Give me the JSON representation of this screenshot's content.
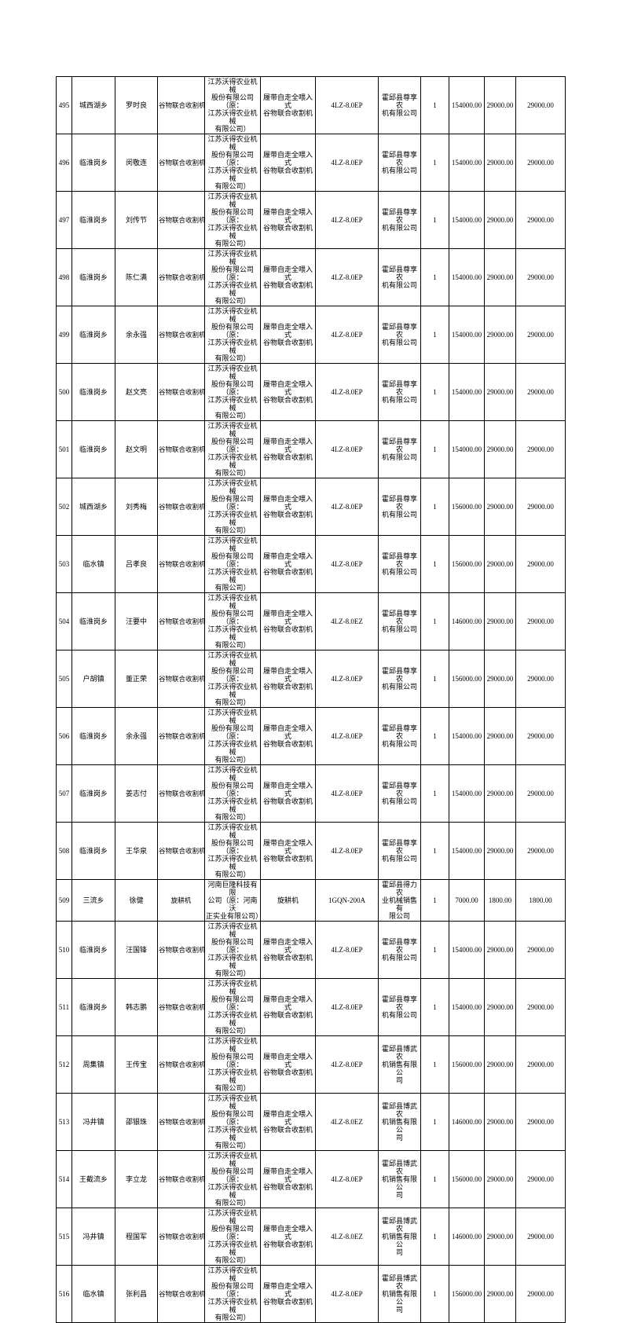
{
  "colors": {
    "text": "#000000",
    "border": "#000000",
    "background": "#ffffff"
  },
  "table": {
    "columns": [
      "seq",
      "township",
      "name",
      "machine_type",
      "manufacturer",
      "product",
      "model",
      "dealer",
      "quantity",
      "price",
      "unit_subsidy",
      "total_subsidy"
    ],
    "rows": [
      {
        "seq": "495",
        "township": "城西湖乡",
        "name": "罗时良",
        "machine_type": "谷物联合收割机",
        "manufacturer": "江苏沃得农业机械\n股份有限公司（原：\n江苏沃得农业机械\n有限公司）",
        "product": "履带自走全喂入式\n谷物联合收割机",
        "model": "4LZ-8.0EP",
        "dealer": "霍邱县尊享农\n机有限公司",
        "quantity": "1",
        "price": "154000.00",
        "unit_subsidy": "29000.00",
        "total_subsidy": "29000.00"
      },
      {
        "seq": "496",
        "township": "临淮岗乡",
        "name": "闵敬连",
        "machine_type": "谷物联合收割机",
        "manufacturer": "江苏沃得农业机械\n股份有限公司（原：\n江苏沃得农业机械\n有限公司）",
        "product": "履带自走全喂入式\n谷物联合收割机",
        "model": "4LZ-8.0EP",
        "dealer": "霍邱县尊享农\n机有限公司",
        "quantity": "1",
        "price": "154000.00",
        "unit_subsidy": "29000.00",
        "total_subsidy": "29000.00"
      },
      {
        "seq": "497",
        "township": "临淮岗乡",
        "name": "刘传节",
        "machine_type": "谷物联合收割机",
        "manufacturer": "江苏沃得农业机械\n股份有限公司（原：\n江苏沃得农业机械\n有限公司）",
        "product": "履带自走全喂入式\n谷物联合收割机",
        "model": "4LZ-8.0EP",
        "dealer": "霍邱县尊享农\n机有限公司",
        "quantity": "1",
        "price": "154000.00",
        "unit_subsidy": "29000.00",
        "total_subsidy": "29000.00"
      },
      {
        "seq": "498",
        "township": "临淮岗乡",
        "name": "陈仁满",
        "machine_type": "谷物联合收割机",
        "manufacturer": "江苏沃得农业机械\n股份有限公司（原：\n江苏沃得农业机械\n有限公司）",
        "product": "履带自走全喂入式\n谷物联合收割机",
        "model": "4LZ-8.0EP",
        "dealer": "霍邱县尊享农\n机有限公司",
        "quantity": "1",
        "price": "154000.00",
        "unit_subsidy": "29000.00",
        "total_subsidy": "29000.00"
      },
      {
        "seq": "499",
        "township": "临淮岗乡",
        "name": "余永强",
        "machine_type": "谷物联合收割机",
        "manufacturer": "江苏沃得农业机械\n股份有限公司（原：\n江苏沃得农业机械\n有限公司）",
        "product": "履带自走全喂入式\n谷物联合收割机",
        "model": "4LZ-8.0EP",
        "dealer": "霍邱县尊享农\n机有限公司",
        "quantity": "1",
        "price": "154000.00",
        "unit_subsidy": "29000.00",
        "total_subsidy": "29000.00"
      },
      {
        "seq": "500",
        "township": "临淮岗乡",
        "name": "赵文亮",
        "machine_type": "谷物联合收割机",
        "manufacturer": "江苏沃得农业机械\n股份有限公司（原：\n江苏沃得农业机械\n有限公司）",
        "product": "履带自走全喂入式\n谷物联合收割机",
        "model": "4LZ-8.0EP",
        "dealer": "霍邱县尊享农\n机有限公司",
        "quantity": "1",
        "price": "154000.00",
        "unit_subsidy": "29000.00",
        "total_subsidy": "29000.00"
      },
      {
        "seq": "501",
        "township": "临淮岗乡",
        "name": "赵文明",
        "machine_type": "谷物联合收割机",
        "manufacturer": "江苏沃得农业机械\n股份有限公司（原：\n江苏沃得农业机械\n有限公司）",
        "product": "履带自走全喂入式\n谷物联合收割机",
        "model": "4LZ-8.0EP",
        "dealer": "霍邱县尊享农\n机有限公司",
        "quantity": "1",
        "price": "154000.00",
        "unit_subsidy": "29000.00",
        "total_subsidy": "29000.00"
      },
      {
        "seq": "502",
        "township": "城西湖乡",
        "name": "刘秀梅",
        "machine_type": "谷物联合收割机",
        "manufacturer": "江苏沃得农业机械\n股份有限公司（原：\n江苏沃得农业机械\n有限公司）",
        "product": "履带自走全喂入式\n谷物联合收割机",
        "model": "4LZ-8.0EP",
        "dealer": "霍邱县尊享农\n机有限公司",
        "quantity": "1",
        "price": "156000.00",
        "unit_subsidy": "29000.00",
        "total_subsidy": "29000.00"
      },
      {
        "seq": "503",
        "township": "临水镇",
        "name": "吕孝良",
        "machine_type": "谷物联合收割机",
        "manufacturer": "江苏沃得农业机械\n股份有限公司（原：\n江苏沃得农业机械\n有限公司）",
        "product": "履带自走全喂入式\n谷物联合收割机",
        "model": "4LZ-8.0EP",
        "dealer": "霍邱县尊享农\n机有限公司",
        "quantity": "1",
        "price": "156000.00",
        "unit_subsidy": "29000.00",
        "total_subsidy": "29000.00"
      },
      {
        "seq": "504",
        "township": "临淮岗乡",
        "name": "汪要中",
        "machine_type": "谷物联合收割机",
        "manufacturer": "江苏沃得农业机械\n股份有限公司（原：\n江苏沃得农业机械\n有限公司）",
        "product": "履带自走全喂入式\n谷物联合收割机",
        "model": "4LZ-8.0EZ",
        "dealer": "霍邱县尊享农\n机有限公司",
        "quantity": "1",
        "price": "146000.00",
        "unit_subsidy": "29000.00",
        "total_subsidy": "29000.00"
      },
      {
        "seq": "505",
        "township": "户胡镇",
        "name": "董正荣",
        "machine_type": "谷物联合收割机",
        "manufacturer": "江苏沃得农业机械\n股份有限公司（原：\n江苏沃得农业机械\n有限公司）",
        "product": "履带自走全喂入式\n谷物联合收割机",
        "model": "4LZ-8.0EP",
        "dealer": "霍邱县尊享农\n机有限公司",
        "quantity": "1",
        "price": "156000.00",
        "unit_subsidy": "29000.00",
        "total_subsidy": "29000.00"
      },
      {
        "seq": "506",
        "township": "临淮岗乡",
        "name": "余永强",
        "machine_type": "谷物联合收割机",
        "manufacturer": "江苏沃得农业机械\n股份有限公司（原：\n江苏沃得农业机械\n有限公司）",
        "product": "履带自走全喂入式\n谷物联合收割机",
        "model": "4LZ-8.0EP",
        "dealer": "霍邱县尊享农\n机有限公司",
        "quantity": "1",
        "price": "154000.00",
        "unit_subsidy": "29000.00",
        "total_subsidy": "29000.00"
      },
      {
        "seq": "507",
        "township": "临淮岗乡",
        "name": "姜志付",
        "machine_type": "谷物联合收割机",
        "manufacturer": "江苏沃得农业机械\n股份有限公司（原：\n江苏沃得农业机械\n有限公司）",
        "product": "履带自走全喂入式\n谷物联合收割机",
        "model": "4LZ-8.0EP",
        "dealer": "霍邱县尊享农\n机有限公司",
        "quantity": "1",
        "price": "154000.00",
        "unit_subsidy": "29000.00",
        "total_subsidy": "29000.00"
      },
      {
        "seq": "508",
        "township": "临淮岗乡",
        "name": "王华泉",
        "machine_type": "谷物联合收割机",
        "manufacturer": "江苏沃得农业机械\n股份有限公司（原：\n江苏沃得农业机械\n有限公司）",
        "product": "履带自走全喂入式\n谷物联合收割机",
        "model": "4LZ-8.0EP",
        "dealer": "霍邱县尊享农\n机有限公司",
        "quantity": "1",
        "price": "154000.00",
        "unit_subsidy": "29000.00",
        "total_subsidy": "29000.00"
      },
      {
        "seq": "509",
        "township": "三流乡",
        "name": "徐健",
        "machine_type": "旋耕机",
        "manufacturer": "河南巨隆科技有限\n公司（原：河南沃\n正实业有限公司）",
        "product": "旋耕机",
        "model": "1GQN-200A",
        "dealer": "霍邱县得力农\n业机械销售有\n限公司",
        "quantity": "1",
        "price": "7000.00",
        "unit_subsidy": "1800.00",
        "total_subsidy": "1800.00"
      },
      {
        "seq": "510",
        "township": "临淮岗乡",
        "name": "汪国锋",
        "machine_type": "谷物联合收割机",
        "manufacturer": "江苏沃得农业机械\n股份有限公司（原：\n江苏沃得农业机械\n有限公司）",
        "product": "履带自走全喂入式\n谷物联合收割机",
        "model": "4LZ-8.0EP",
        "dealer": "霍邱县尊享农\n机有限公司",
        "quantity": "1",
        "price": "154000.00",
        "unit_subsidy": "29000.00",
        "total_subsidy": "29000.00"
      },
      {
        "seq": "511",
        "township": "临淮岗乡",
        "name": "韩志鹏",
        "machine_type": "谷物联合收割机",
        "manufacturer": "江苏沃得农业机械\n股份有限公司（原：\n江苏沃得农业机械\n有限公司）",
        "product": "履带自走全喂入式\n谷物联合收割机",
        "model": "4LZ-8.0EP",
        "dealer": "霍邱县尊享农\n机有限公司",
        "quantity": "1",
        "price": "154000.00",
        "unit_subsidy": "29000.00",
        "total_subsidy": "29000.00"
      },
      {
        "seq": "512",
        "township": "周集镇",
        "name": "王传宝",
        "machine_type": "谷物联合收割机",
        "manufacturer": "江苏沃得农业机械\n股份有限公司（原：\n江苏沃得农业机械\n有限公司）",
        "product": "履带自走全喂入式\n谷物联合收割机",
        "model": "4LZ-8.0EP",
        "dealer": "霍邱县博武农\n机销售有限公\n司",
        "quantity": "1",
        "price": "156000.00",
        "unit_subsidy": "29000.00",
        "total_subsidy": "29000.00"
      },
      {
        "seq": "513",
        "township": "冯井镇",
        "name": "邵银珠",
        "machine_type": "谷物联合收割机",
        "manufacturer": "江苏沃得农业机械\n股份有限公司（原：\n江苏沃得农业机械\n有限公司）",
        "product": "履带自走全喂入式\n谷物联合收割机",
        "model": "4LZ-8.0EZ",
        "dealer": "霍邱县博武农\n机销售有限公\n司",
        "quantity": "1",
        "price": "146000.00",
        "unit_subsidy": "29000.00",
        "total_subsidy": "29000.00"
      },
      {
        "seq": "514",
        "township": "王截流乡",
        "name": "李立龙",
        "machine_type": "谷物联合收割机",
        "manufacturer": "江苏沃得农业机械\n股份有限公司（原：\n江苏沃得农业机械\n有限公司）",
        "product": "履带自走全喂入式\n谷物联合收割机",
        "model": "4LZ-8.0EP",
        "dealer": "霍邱县博武农\n机销售有限公\n司",
        "quantity": "1",
        "price": "156000.00",
        "unit_subsidy": "29000.00",
        "total_subsidy": "29000.00"
      },
      {
        "seq": "515",
        "township": "冯井镇",
        "name": "程国军",
        "machine_type": "谷物联合收割机",
        "manufacturer": "江苏沃得农业机械\n股份有限公司（原：\n江苏沃得农业机械\n有限公司）",
        "product": "履带自走全喂入式\n谷物联合收割机",
        "model": "4LZ-8.0EZ",
        "dealer": "霍邱县博武农\n机销售有限公\n司",
        "quantity": "1",
        "price": "146000.00",
        "unit_subsidy": "29000.00",
        "total_subsidy": "29000.00"
      },
      {
        "seq": "516",
        "township": "临水镇",
        "name": "张利昌",
        "machine_type": "谷物联合收割机",
        "manufacturer": "江苏沃得农业机械\n股份有限公司（原：\n江苏沃得农业机械\n有限公司）",
        "product": "履带自走全喂入式\n谷物联合收割机",
        "model": "4LZ-8.0EP",
        "dealer": "霍邱县博武农\n机销售有限公\n司",
        "quantity": "1",
        "price": "156000.00",
        "unit_subsidy": "29000.00",
        "total_subsidy": "29000.00"
      }
    ]
  }
}
